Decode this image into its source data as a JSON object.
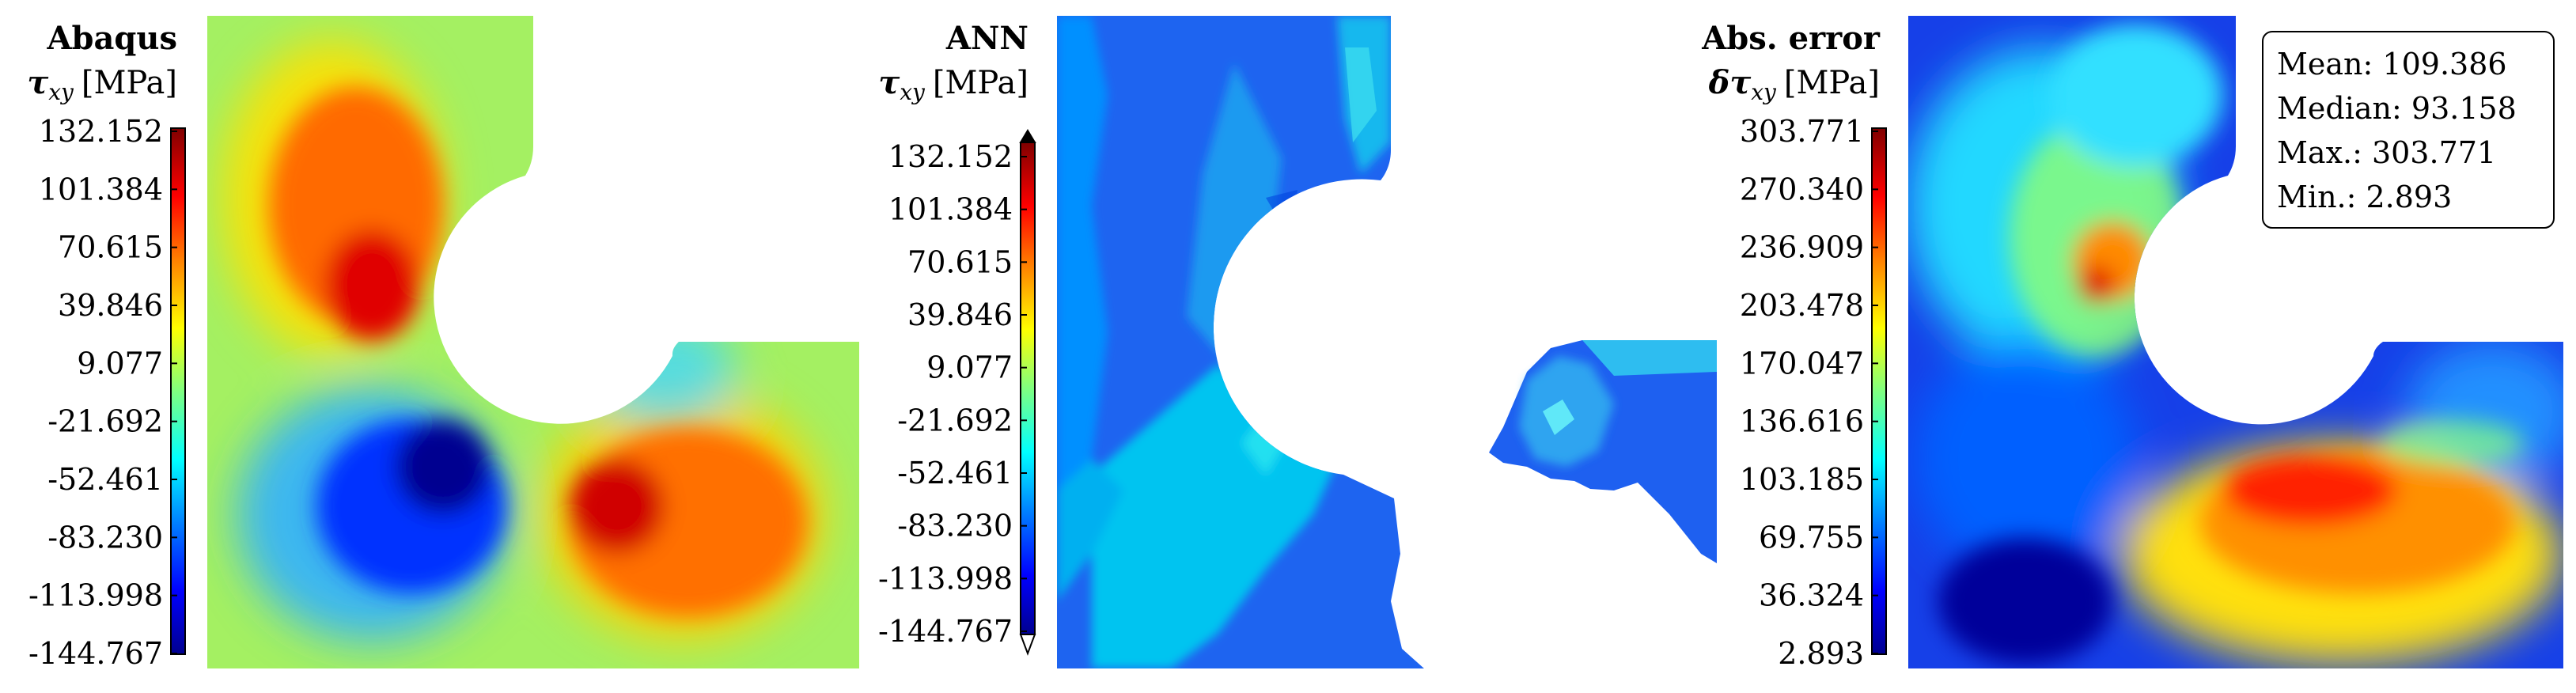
{
  "chart_data": [
    {
      "type": "heatmap",
      "title": "Abaqus",
      "quantity": "τ",
      "quantity_sub": "xy",
      "unit": "[MPa]",
      "colormap": "jet",
      "range": [
        -144.767,
        132.152
      ],
      "ticks": [
        "132.152",
        "101.384",
        "70.615",
        "39.846",
        "9.077",
        "-21.692",
        "-52.461",
        "-83.230",
        "-113.998",
        "-144.767"
      ]
    },
    {
      "type": "heatmap",
      "title": "ANN",
      "quantity": "τ",
      "quantity_sub": "xy",
      "unit": "[MPa]",
      "colormap": "jet",
      "range": [
        -144.767,
        132.152
      ],
      "colorbar_extends": "both",
      "ticks": [
        "132.152",
        "101.384",
        "70.615",
        "39.846",
        "9.077",
        "-21.692",
        "-52.461",
        "-83.230",
        "-113.998",
        "-144.767"
      ]
    },
    {
      "type": "heatmap",
      "title": "Abs. error",
      "quantity": "δτ",
      "quantity_sub": "xy",
      "unit": "[MPa]",
      "colormap": "jet",
      "range": [
        2.893,
        303.771
      ],
      "ticks": [
        "303.771",
        "270.340",
        "236.909",
        "203.478",
        "170.047",
        "136.616",
        "103.185",
        "69.755",
        "36.324",
        "2.893"
      ],
      "stats": {
        "mean": "Mean: 109.386",
        "median": "Median: 93.158",
        "max": "Max.: 303.771",
        "min": "Min.: 2.893"
      }
    }
  ],
  "colors": {
    "jet_stops": [
      "#00008f",
      "#0000ff",
      "#0080ff",
      "#00ffff",
      "#80ff80",
      "#ffff00",
      "#ff8000",
      "#ff0000",
      "#800000"
    ],
    "error_max": "#c80000",
    "error_high": "#ff6400",
    "background_low": "#1030e0",
    "ann_background": "#1e64f0",
    "ann_region": "#00c0f0",
    "field_green": "#9af060"
  }
}
